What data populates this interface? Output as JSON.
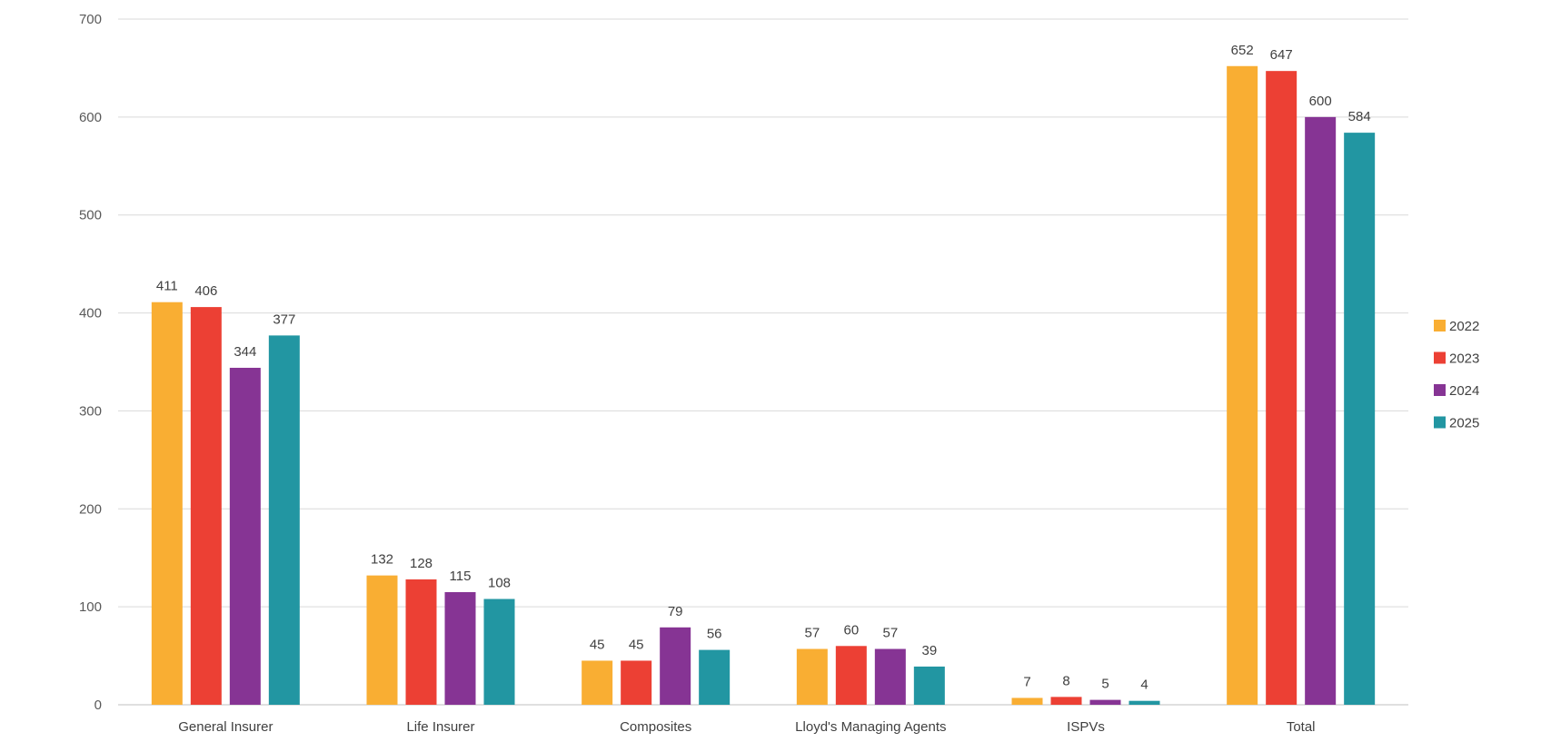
{
  "chart_data": {
    "type": "bar",
    "categories": [
      "General Insurer",
      "Life Insurer",
      "Composites",
      "Lloyd's Managing Agents",
      "ISPVs",
      "Total"
    ],
    "series": [
      {
        "name": "2022",
        "color": "#F9AE33",
        "values": [
          411,
          132,
          45,
          57,
          7,
          652
        ]
      },
      {
        "name": "2023",
        "color": "#EC4034",
        "values": [
          406,
          128,
          45,
          60,
          8,
          647
        ]
      },
      {
        "name": "2024",
        "color": "#863494",
        "values": [
          344,
          115,
          79,
          57,
          5,
          600
        ]
      },
      {
        "name": "2025",
        "color": "#2296A2",
        "values": [
          377,
          108,
          56,
          39,
          4,
          584
        ]
      }
    ],
    "ylim": [
      0,
      700
    ],
    "yticks": [
      0,
      100,
      200,
      300,
      400,
      500,
      600,
      700
    ],
    "grid": true,
    "legend_position": "right"
  }
}
